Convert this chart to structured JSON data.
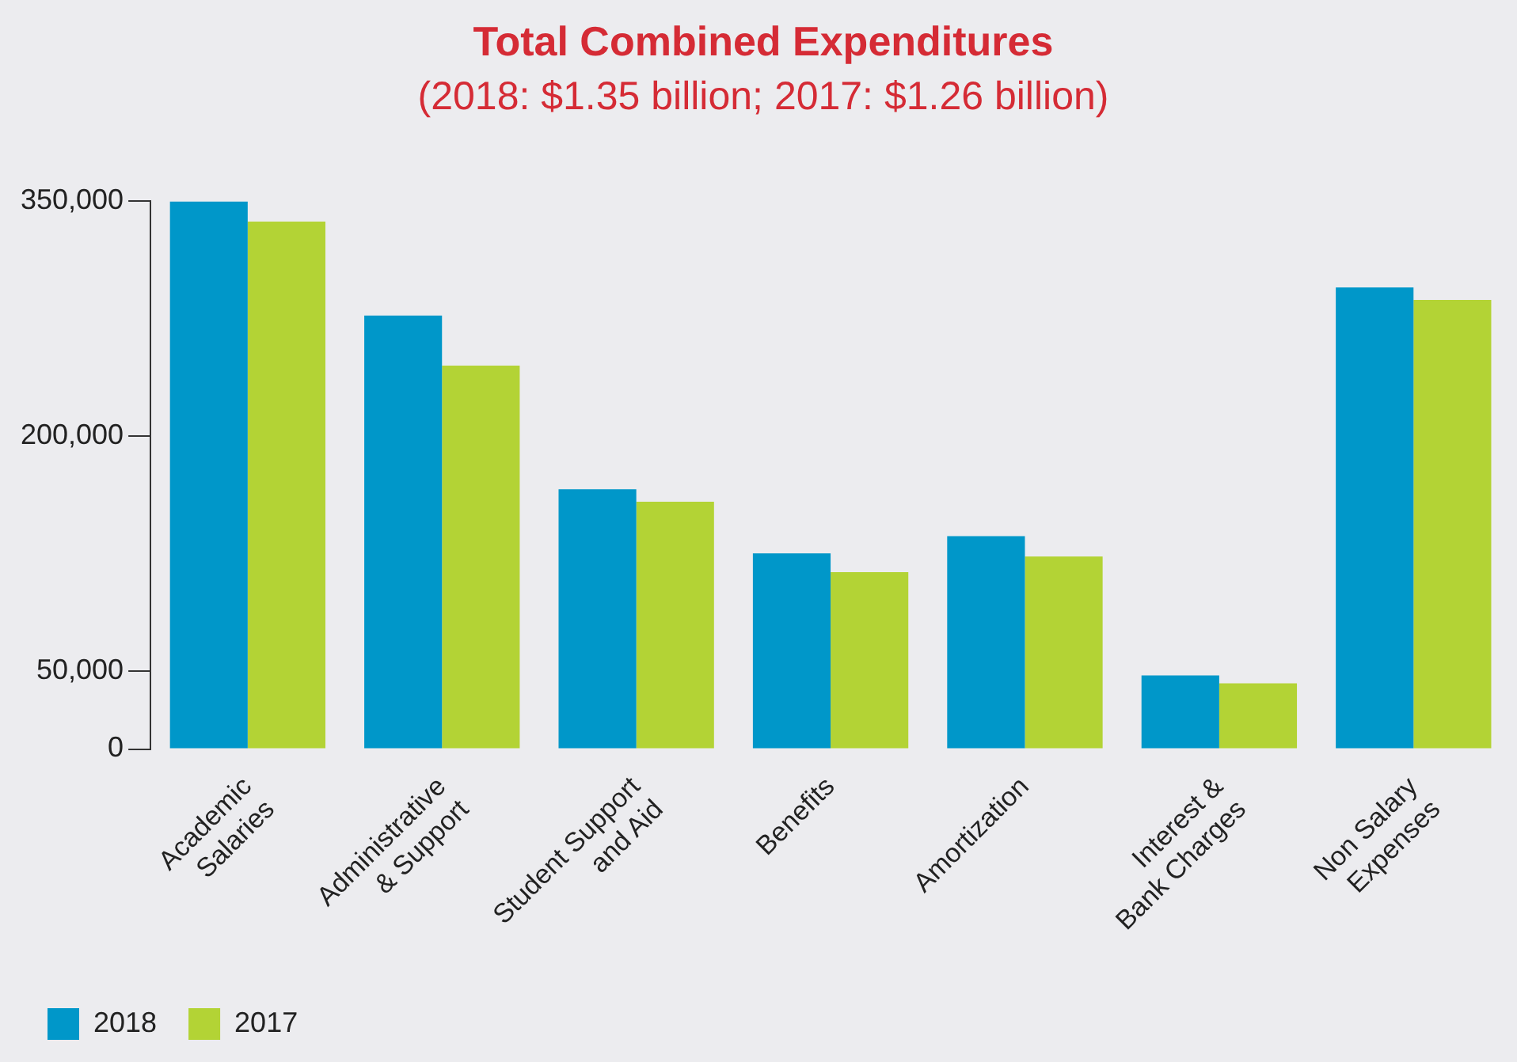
{
  "chart_data": {
    "type": "bar",
    "title": "Total Combined Expenditures",
    "subtitle": "(2018: $1.35 billion; 2017: $1.26 billion)",
    "categories": [
      "Academic\nSalaries",
      "Administrative\n& Support",
      "Student Support\nand Aid",
      "Benefits",
      "Amortization",
      "Interest &\nBank Charges",
      "Non Salary\nExpenses"
    ],
    "series": [
      {
        "name": "2018",
        "color": "#0097c9",
        "values": [
          350000,
          277000,
          166000,
          125000,
          136000,
          47000,
          295000
        ]
      },
      {
        "name": "2017",
        "color": "#b3d335",
        "values": [
          337000,
          245000,
          158000,
          113000,
          123000,
          42000,
          287000
        ]
      }
    ],
    "ylim": [
      0,
      350000
    ],
    "yticks": [
      0,
      {
        "value": 50000,
        "label": "50,000"
      },
      {
        "value": 200000,
        "label": "200,000"
      },
      {
        "value": 350000,
        "label": "350,000"
      }
    ],
    "grid": false,
    "legend": "bottom left"
  }
}
